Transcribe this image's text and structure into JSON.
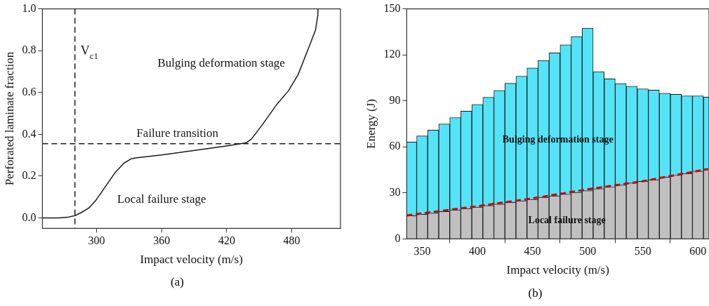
{
  "chart_data": [
    {
      "type": "line",
      "xlabel": "Impact velocity (m/s)",
      "ylabel": "Perforated laminate fraction",
      "xlim": [
        250,
        525
      ],
      "ylim": [
        -0.05,
        1.0
      ],
      "xticks": [
        300,
        360,
        420,
        480
      ],
      "yticks": [
        {
          "value": 0,
          "label": "0.0"
        },
        {
          "value": 0.2,
          "label": "0.2"
        },
        {
          "value": 0.4,
          "label": "0.4"
        },
        {
          "value": 0.6,
          "label": "0.6"
        },
        {
          "value": 0.8,
          "label": "0.8"
        },
        {
          "value": 1,
          "label": "1.0"
        }
      ],
      "grid": false,
      "legend": false,
      "marker": "none",
      "line_style": "solid",
      "color": "#1a1a1a",
      "x": [
        250,
        265,
        273,
        280,
        286,
        293,
        299,
        308,
        317,
        325,
        332,
        336,
        360,
        393,
        421,
        438,
        443,
        453,
        466,
        477,
        486,
        497,
        502,
        504,
        504.2
      ],
      "values": [
        0,
        0,
        0.003,
        0.011,
        0.026,
        0.048,
        0.082,
        0.149,
        0.216,
        0.261,
        0.283,
        0.287,
        0.301,
        0.325,
        0.345,
        0.359,
        0.378,
        0.446,
        0.541,
        0.608,
        0.686,
        0.832,
        0.899,
        0.966,
        1.0
      ],
      "ref_lines": [
        {
          "axis": "x",
          "value": 280,
          "label": "V$_{c1}$",
          "line_style": "dashed",
          "color": "#1a1a1a"
        },
        {
          "axis": "y",
          "value": 0.355,
          "label": "Failure transition",
          "line_style": "dashed",
          "color": "#1a1a1a"
        }
      ],
      "annotations": [
        "Bulging deformation stage",
        "Local failure stage",
        "(a)"
      ]
    },
    {
      "type": "bar",
      "stacked": true,
      "xlabel": "Impact velocity (m/s)",
      "ylabel": "Energy (J)",
      "xlim": [
        336,
        610
      ],
      "ylim": [
        0,
        150
      ],
      "xticks": [
        350,
        400,
        450,
        500,
        550,
        600
      ],
      "yticks": [
        0,
        30,
        60,
        90,
        120,
        150
      ],
      "grid": false,
      "legend": false,
      "x": [
        340,
        350,
        360,
        370,
        380,
        390,
        400,
        410,
        420,
        430,
        440,
        450,
        460,
        470,
        480,
        490,
        500,
        510,
        520,
        530,
        540,
        550,
        560,
        570,
        580,
        590,
        600,
        610
      ],
      "series": [
        {
          "color": "#c0c0c0",
          "values": [
            15.1,
            16.1,
            16.8,
            17.9,
            18.9,
            19.8,
            20.7,
            21.8,
            22.7,
            23.8,
            24.9,
            25.8,
            27.2,
            28.1,
            29.2,
            30.3,
            31.5,
            32.8,
            33.8,
            35.1,
            36.5,
            37.6,
            38.6,
            40.3,
            41.6,
            42.7,
            44.2,
            45.7
          ]
        },
        {
          "color": "#55e3f7",
          "values": [
            48.1,
            51.1,
            54.2,
            57.1,
            60.2,
            63.5,
            67.0,
            70.5,
            74.1,
            77.7,
            81.2,
            85.6,
            89.2,
            93.2,
            97.4,
            101.6,
            105.9,
            76.3,
            70.6,
            66.2,
            63.1,
            60.3,
            58.4,
            54.7,
            52.7,
            50.6,
            49.1,
            46.8
          ]
        },
        {
          "type": "line",
          "color": "#cc0000",
          "line_style": "dashed",
          "marker": "none",
          "x": [
            336,
            400,
            450,
            500,
            550,
            609
          ],
          "values": [
            15.3,
            21.3,
            26.4,
            32.3,
            37.6,
            45.5
          ]
        }
      ],
      "annotations": [
        "Bulging deformation stage",
        "Local failure stage",
        "(b)"
      ]
    }
  ]
}
